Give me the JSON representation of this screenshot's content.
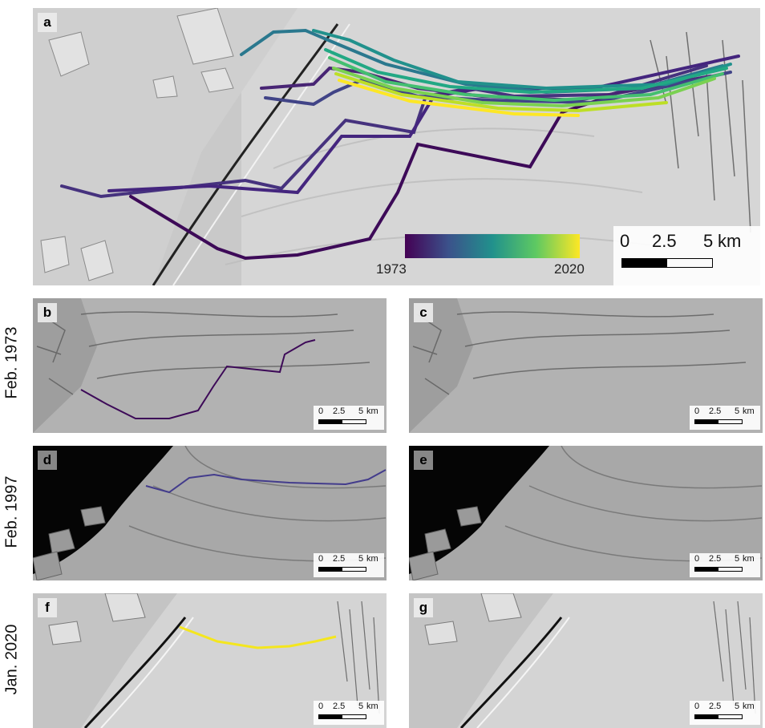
{
  "panels": {
    "a": "a",
    "b": "b",
    "c": "c",
    "d": "d",
    "e": "e",
    "f": "f",
    "g": "g"
  },
  "row_labels": {
    "row1": "Feb. 1973",
    "row2": "Feb. 1997",
    "row3": "Jan. 2020"
  },
  "colorbar": {
    "min_label": "1973",
    "max_label": "2020",
    "colors": [
      "#440154",
      "#3b528b",
      "#21918c",
      "#5ec962",
      "#fde725"
    ]
  },
  "scalebar": {
    "tick_0": "0",
    "tick_mid": "2.5",
    "tick_max": "5",
    "unit": "km"
  },
  "front_colors": {
    "1973": "#3d0a58",
    "1997": "#433c8c",
    "2020": "#f4e61e"
  }
}
